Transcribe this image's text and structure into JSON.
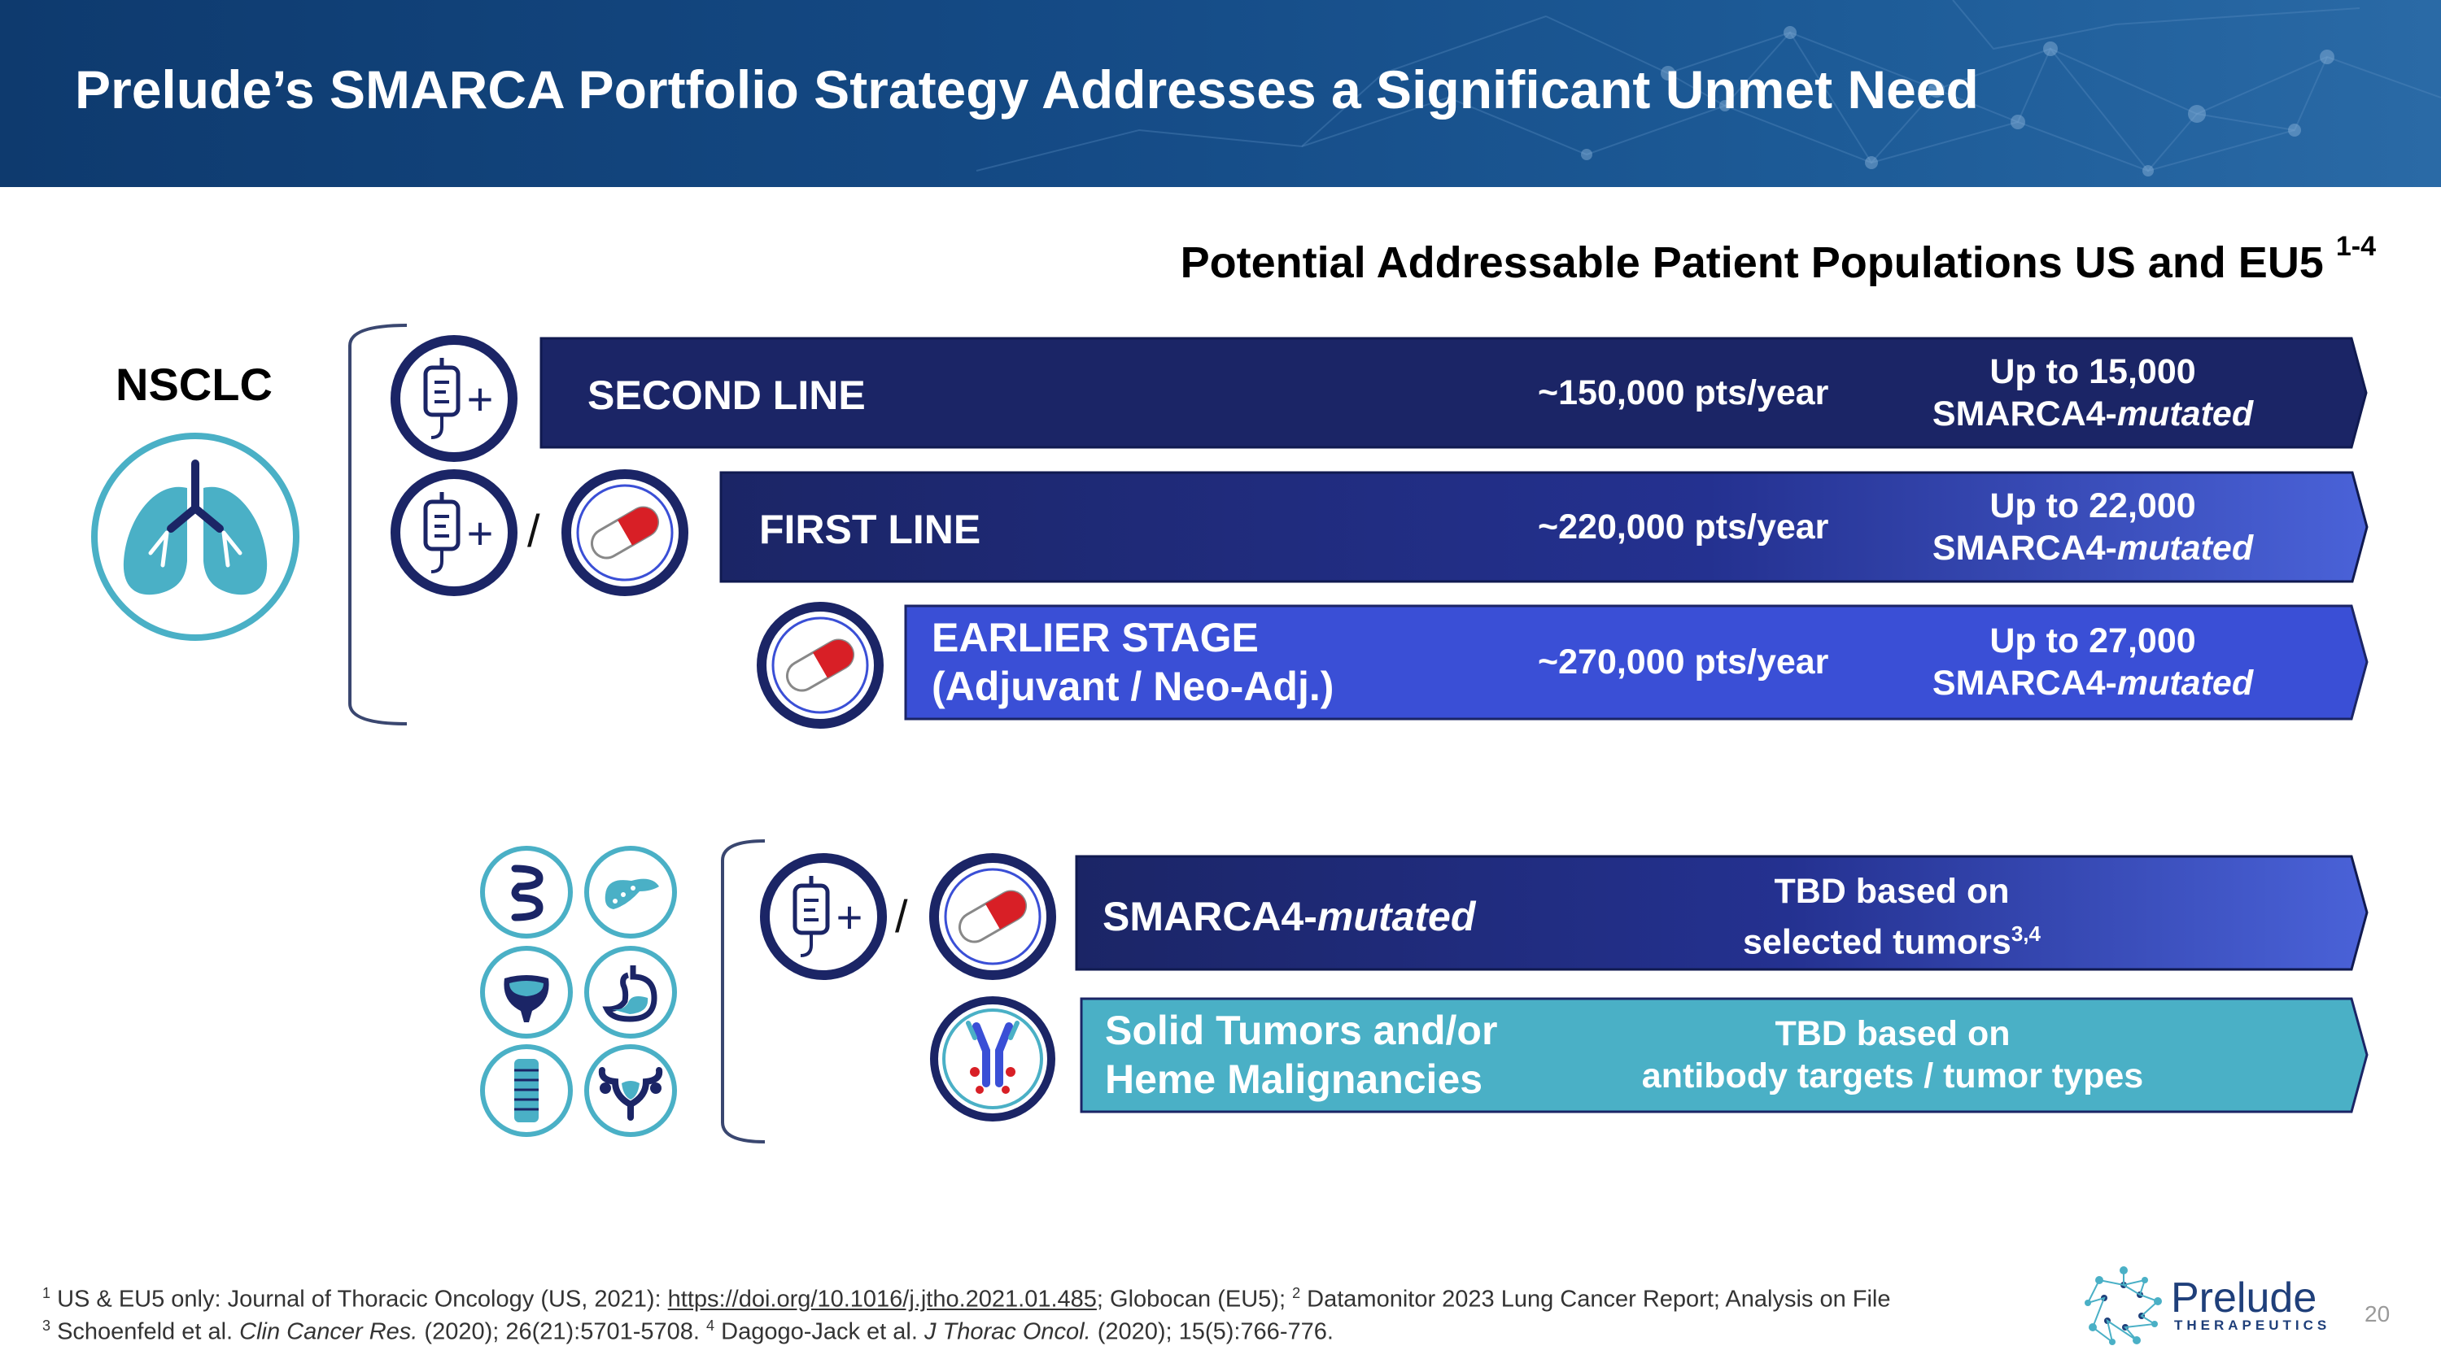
{
  "header": {
    "title": "Prelude’s SMARCA Portfolio Strategy Addresses a Significant Unmet Need"
  },
  "subtitle": {
    "text": "Potential Addressable Patient Populations US and EU5",
    "sup": "1-4"
  },
  "nsclc_label": "NSCLC",
  "bars": {
    "second": {
      "label": "SECOND LINE",
      "pts": "~150,000 pts/year",
      "up_line1": "Up to 15,000",
      "up_prefix": "SMARCA4-",
      "up_italic": "mutated"
    },
    "first": {
      "label": "FIRST LINE",
      "pts": "~220,000 pts/year",
      "up_line1": "Up to 22,000",
      "up_prefix": "SMARCA4-",
      "up_italic": "mutated"
    },
    "earlier": {
      "label_line1": "EARLIER STAGE",
      "label_line2": "(Adjuvant / Neo-Adj.)",
      "pts": "~270,000 pts/year",
      "up_line1": "Up to 27,000",
      "up_prefix": "SMARCA4-",
      "up_italic": "mutated"
    },
    "smarca": {
      "label_prefix": "SMARCA4-",
      "label_italic": "mutated",
      "tbd_line1": "TBD based on",
      "tbd_line2": "selected tumors",
      "tbd_sup": "3,4"
    },
    "solid": {
      "label_line1": "Solid Tumors and/or",
      "label_line2": "Heme Malignancies",
      "tbd_line1": "TBD based on",
      "tbd_line2": "antibody targets / tumor types"
    }
  },
  "slash": "/",
  "plus": "+",
  "footnotes": {
    "line1": {
      "sup1": "1",
      "t1": " US & EU5 only:  Journal of Thoracic Oncology (US, 2021):  ",
      "link": "https://doi.org/10.1016/j.jtho.2021.01.485",
      "t2": "; Globocan (EU5); ",
      "sup2": "2",
      "t3": " Datamonitor 2023 Lung Cancer Report; Analysis on File"
    },
    "line2": {
      "sup1": "3",
      "t1": " Schoenfeld et al. ",
      "i1": "Clin Cancer Res.",
      "t2": " (2020); 26(21):5701-5708.  ",
      "sup2": "4",
      "t3": " Dagogo-Jack et al. ",
      "i2": "J Thorac Oncol.",
      "t4": " (2020); 15(5):766-776."
    }
  },
  "logo": {
    "name": "Prelude",
    "sub": "THERAPEUTICS"
  },
  "page_number": "20",
  "colors": {
    "navy": "#1b2566",
    "blue": "#3a4fd6",
    "teal": "#4ab0c6"
  }
}
